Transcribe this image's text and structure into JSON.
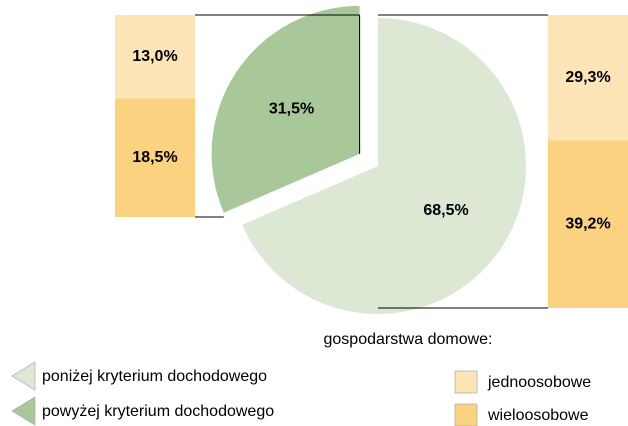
{
  "chart_data": [
    {
      "type": "pie",
      "categories": [
        "poniżej kryterium dochodowego",
        "powyżej kryterium dochodowego"
      ],
      "values": [
        68.5,
        31.5
      ],
      "value_labels": [
        "68,5%",
        "31,5%"
      ],
      "colors": [
        "#dde8d4",
        "#a9c89a"
      ],
      "legend_title": "gospodarstwa domowe:"
    },
    {
      "type": "bar",
      "stacked": true,
      "series": [
        {
          "name": "jednoosobowe",
          "color": "#fde5b8",
          "values": [
            13.0
          ],
          "value_labels": [
            "13,0%"
          ]
        },
        {
          "name": "wieloosobowe",
          "color": "#fbd280",
          "values": [
            18.5
          ],
          "value_labels": [
            "18,5%"
          ]
        }
      ]
    },
    {
      "type": "bar",
      "stacked": true,
      "series": [
        {
          "name": "jednoosobowe",
          "color": "#fde5b8",
          "values": [
            29.3
          ],
          "value_labels": [
            "29,3%"
          ]
        },
        {
          "name": "wieloosobowe",
          "color": "#fbd280",
          "values": [
            39.2
          ],
          "value_labels": [
            "39,2%"
          ]
        }
      ]
    }
  ]
}
